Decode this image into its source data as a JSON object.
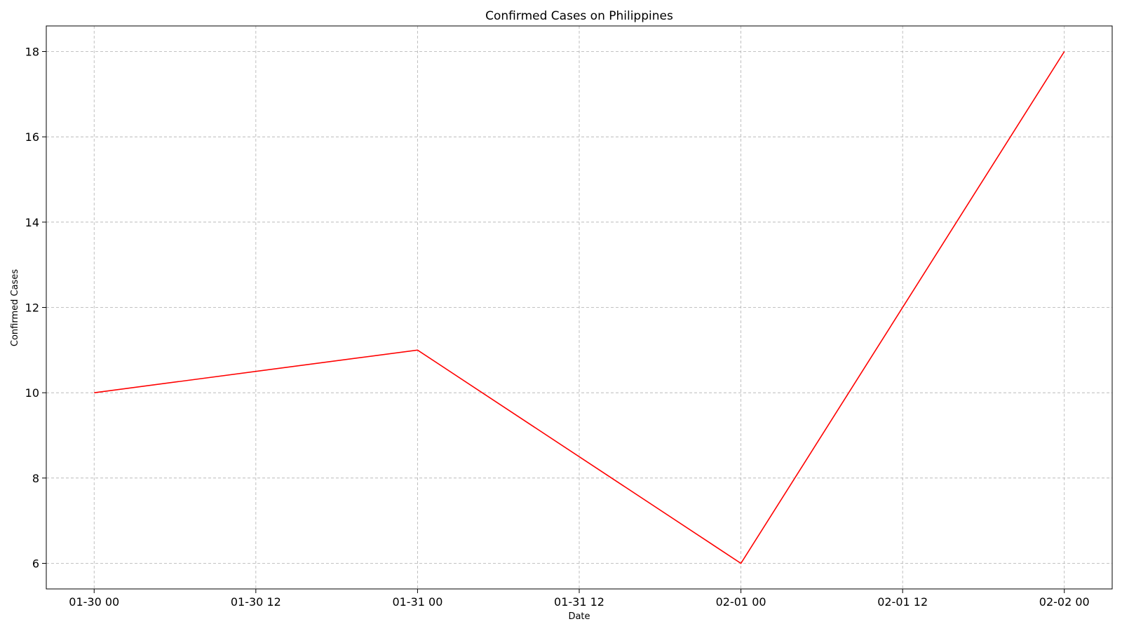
{
  "chart_data": {
    "type": "line",
    "title": "Confirmed Cases on Philippines",
    "xlabel": "Date",
    "ylabel": "Confirmed Cases",
    "x_tick_labels": [
      "01-30 00",
      "01-30 12",
      "01-31 00",
      "01-31 12",
      "02-01 00",
      "02-01 12",
      "02-02 00"
    ],
    "y_ticks": [
      6,
      8,
      10,
      12,
      14,
      16,
      18
    ],
    "xlim": [
      -0.148,
      3.148
    ],
    "ylim": [
      5.4,
      18.6
    ],
    "grid": true,
    "series": [
      {
        "color": "#ff0000",
        "x": [
          "01-30 00",
          "01-31 00",
          "02-01 00",
          "02-02 00"
        ],
        "y": [
          10,
          11,
          6,
          18
        ]
      }
    ]
  }
}
